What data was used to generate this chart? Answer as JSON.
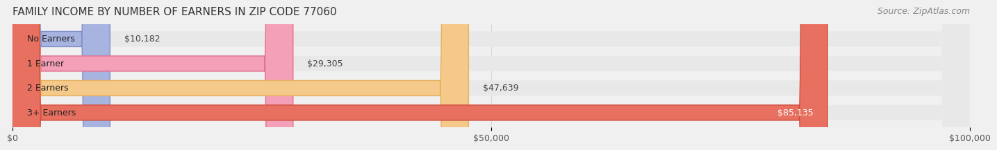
{
  "title": "FAMILY INCOME BY NUMBER OF EARNERS IN ZIP CODE 77060",
  "source": "Source: ZipAtlas.com",
  "categories": [
    "No Earners",
    "1 Earner",
    "2 Earners",
    "3+ Earners"
  ],
  "values": [
    10182,
    29305,
    47639,
    85135
  ],
  "bar_colors": [
    "#a8b4e0",
    "#f4a0b8",
    "#f5c98a",
    "#e87060"
  ],
  "bar_edge_colors": [
    "#8090c8",
    "#e07090",
    "#e8b060",
    "#d05040"
  ],
  "value_labels": [
    "$10,182",
    "$29,305",
    "$47,639",
    "$85,135"
  ],
  "label_colors": [
    "#333333",
    "#333333",
    "#333333",
    "#ffffff"
  ],
  "xlim": [
    0,
    100000
  ],
  "xtick_values": [
    0,
    50000,
    100000
  ],
  "xtick_labels": [
    "$0",
    "$50,000",
    "$100,000"
  ],
  "background_color": "#f0f0f0",
  "bar_bg_color": "#e8e8e8",
  "title_fontsize": 11,
  "label_fontsize": 9,
  "tick_fontsize": 9,
  "source_fontsize": 9
}
